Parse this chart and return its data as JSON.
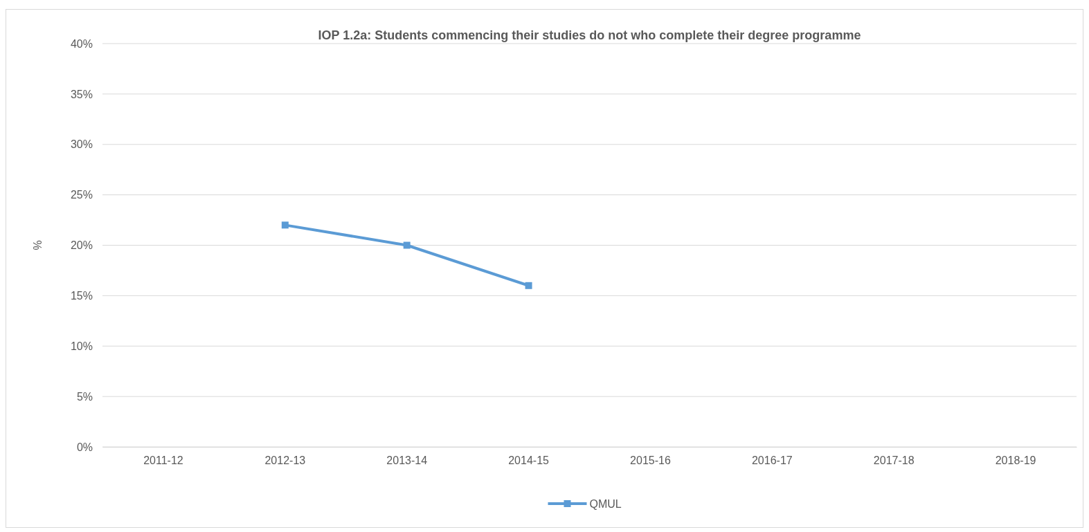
{
  "chart_data": {
    "type": "line",
    "title": "IOP 1.2a: Students commencing their studies do not who complete their degree programme",
    "ylabel": "%",
    "categories": [
      "2011-12",
      "2012-13",
      "2013-14",
      "2014-15",
      "2015-16",
      "2016-17",
      "2017-18",
      "2018-19"
    ],
    "series": [
      {
        "name": "QMUL",
        "color": "#5b9bd5",
        "values": [
          null,
          22,
          20,
          16,
          null,
          null,
          null,
          null
        ]
      }
    ],
    "ylim": [
      0,
      40
    ],
    "yticks": [
      {
        "value": 0,
        "label": "0%"
      },
      {
        "value": 5,
        "label": "5%"
      },
      {
        "value": 10,
        "label": "10%"
      },
      {
        "value": 15,
        "label": "15%"
      },
      {
        "value": 20,
        "label": "20%"
      },
      {
        "value": 25,
        "label": "25%"
      },
      {
        "value": 30,
        "label": "30%"
      },
      {
        "value": 35,
        "label": "35%"
      },
      {
        "value": 40,
        "label": "40%"
      }
    ],
    "grid": "y",
    "legend": "bottom",
    "marker": "square",
    "line_style": "solid"
  }
}
